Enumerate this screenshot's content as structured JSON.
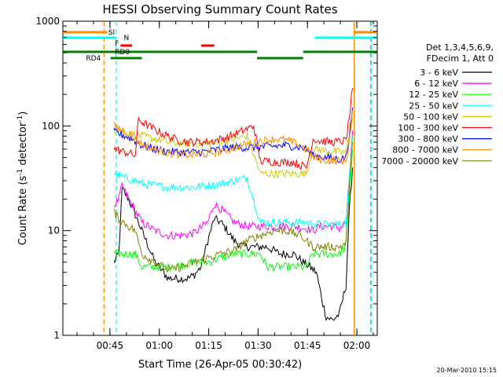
{
  "chart_data": {
    "type": "line",
    "title": "HESSI Observing Summary Count Rates",
    "xlabel": "Start Time (26-Apr-05 00:30:42)",
    "ylabel_main": "Count Rate (s",
    "ylabel_sup1": "-1",
    "ylabel_mid": " detector",
    "ylabel_sup2": "-1",
    "ylabel_end": ")",
    "x_axis_unit": "minutes since 00:30:42",
    "xlim": [
      0,
      95.5
    ],
    "ylim": [
      1,
      1000
    ],
    "yscale": "log",
    "x_ticks": [
      {
        "label": "00:45",
        "value": 14.3
      },
      {
        "label": "01:00",
        "value": 29.3
      },
      {
        "label": "01:15",
        "value": 44.3
      },
      {
        "label": "01:30",
        "value": 59.3
      },
      {
        "label": "01:45",
        "value": 74.3
      },
      {
        "label": "02:00",
        "value": 89.3
      }
    ],
    "y_ticks": [
      {
        "label": "1",
        "value": 1
      },
      {
        "label": "10",
        "value": 10
      },
      {
        "label": "100",
        "value": 100
      },
      {
        "label": "1000",
        "value": 1000
      }
    ],
    "legend_header": [
      "Det 1,3,4,5,6,9,",
      "FDecim 1, Att 0"
    ],
    "series": [
      {
        "name": "3 - 6 keV",
        "color": "#000000",
        "x": [
          15.5,
          17,
          18,
          20,
          24,
          28,
          32,
          36,
          38,
          40,
          42,
          44,
          46,
          48,
          50,
          52,
          55,
          58,
          62,
          66,
          70,
          73,
          75,
          77,
          79,
          80,
          82,
          84,
          86,
          87,
          88
        ],
        "y": [
          5,
          6,
          25,
          20,
          10,
          5,
          3.5,
          3.5,
          3.5,
          3.8,
          4.5,
          8,
          13,
          12,
          10,
          8,
          7,
          7,
          7,
          6,
          6,
          5,
          4.5,
          4,
          2,
          1.5,
          1.4,
          1.6,
          3,
          15,
          40
        ]
      },
      {
        "name": "6 - 12 keV",
        "color": "#ff00ff",
        "x": [
          15.5,
          17,
          18,
          20,
          24,
          28,
          32,
          36,
          40,
          44,
          46,
          48,
          50,
          52,
          56,
          60,
          66,
          70,
          74,
          76,
          78,
          80,
          82,
          84,
          86,
          87,
          88
        ],
        "y": [
          17,
          20,
          27,
          20,
          12,
          10,
          9,
          9,
          9.5,
          12,
          18,
          16,
          14,
          12,
          11,
          11,
          11,
          11,
          10.5,
          10,
          11,
          11,
          11,
          10.5,
          12,
          30,
          90
        ]
      },
      {
        "name": "12 - 25 keV",
        "color": "#00ff00",
        "x": [
          15.5,
          20,
          22,
          24,
          28,
          32,
          36,
          40,
          44,
          48,
          52,
          56,
          60,
          62,
          66,
          70,
          74,
          76,
          80,
          84,
          86,
          87,
          88
        ],
        "y": [
          6,
          6,
          6,
          4.5,
          4.5,
          4.5,
          4.7,
          5,
          5,
          5.5,
          6,
          6,
          6,
          4.5,
          4.5,
          4.5,
          4.5,
          6,
          6,
          6,
          7,
          20,
          60
        ]
      },
      {
        "name": "25 - 50 keV",
        "color": "#00ffff",
        "x": [
          15.5,
          20,
          22,
          24,
          28,
          32,
          36,
          40,
          44,
          48,
          52,
          56,
          60,
          64,
          68,
          72,
          74,
          76,
          80,
          84,
          86,
          87,
          88
        ],
        "y": [
          35,
          31,
          30,
          28,
          27,
          26,
          26,
          26,
          27,
          28,
          30,
          32,
          12,
          12,
          12,
          12,
          12,
          11.5,
          11.5,
          11.5,
          12,
          30,
          80
        ]
      },
      {
        "name": "50 - 100 keV",
        "color": "#cccc00",
        "x": [
          15.5,
          20,
          22,
          24,
          28,
          32,
          36,
          40,
          44,
          48,
          52,
          56,
          60,
          62,
          66,
          70,
          74,
          76,
          80,
          84,
          86,
          87,
          88
        ],
        "y": [
          95,
          85,
          83,
          80,
          75,
          70,
          68,
          68,
          68,
          70,
          75,
          80,
          35,
          35,
          35,
          35,
          35,
          60,
          58,
          56,
          56,
          80,
          120
        ]
      },
      {
        "name": "100 - 300 keV",
        "color": "#ff0000",
        "x": [
          15.5,
          20,
          22,
          23,
          26,
          30,
          34,
          38,
          42,
          46,
          50,
          54,
          58,
          60,
          62,
          66,
          70,
          74,
          76,
          78,
          82,
          86,
          87,
          88
        ],
        "y": [
          60,
          55,
          52,
          115,
          100,
          85,
          75,
          70,
          70,
          72,
          78,
          88,
          100,
          46,
          46,
          45,
          45,
          40,
          75,
          72,
          70,
          72,
          120,
          230
        ]
      },
      {
        "name": "300 - 800 keV",
        "color": "#0000ff",
        "x": [
          15.5,
          18,
          20,
          22,
          24,
          28,
          32,
          36,
          40,
          44,
          48,
          52,
          56,
          60,
          64,
          68,
          72,
          74,
          76,
          80,
          84,
          86,
          87,
          88
        ],
        "y": [
          88,
          82,
          78,
          72,
          65,
          60,
          57,
          56,
          56,
          57,
          60,
          63,
          62,
          63,
          64,
          65,
          63,
          60,
          52,
          50,
          48,
          50,
          80,
          150
        ]
      },
      {
        "name": "800 - 7000 keV",
        "color": "#ff8c00",
        "x": [
          15.5,
          18,
          20,
          22,
          24,
          28,
          32,
          36,
          40,
          44,
          48,
          52,
          56,
          60,
          64,
          68,
          72,
          74,
          76,
          80,
          84,
          86,
          87,
          88
        ],
        "y": [
          100,
          92,
          85,
          75,
          67,
          60,
          55,
          53,
          53,
          54,
          57,
          62,
          67,
          72,
          75,
          73,
          65,
          60,
          50,
          47,
          46,
          47,
          70,
          140
        ]
      },
      {
        "name": "7000 - 20000 keV",
        "color": "#808000",
        "x": [
          15.5,
          17,
          20,
          22,
          24,
          28,
          32,
          36,
          40,
          44,
          48,
          52,
          56,
          60,
          64,
          68,
          72,
          74,
          76,
          80,
          84,
          86,
          87,
          88
        ],
        "y": [
          15,
          13,
          11,
          10,
          6,
          5,
          4.2,
          4.5,
          5,
          5.5,
          6,
          6.5,
          8,
          9,
          10,
          10,
          9,
          8,
          7,
          7,
          7,
          7.5,
          25,
          70
        ]
      }
    ],
    "vertical_lines": [
      {
        "x": 12.5,
        "color": "#ff8c00",
        "style": "dashed"
      },
      {
        "x": 16.2,
        "color": "#00ffff",
        "style": "dashed"
      },
      {
        "x": 88.5,
        "color": "#ff8c00",
        "style": "solid"
      },
      {
        "x": 93.5,
        "color": "#ff8c00",
        "style": "dashed"
      },
      {
        "x": 93.8,
        "color": "#00ffff",
        "style": "dashed"
      }
    ],
    "flags": [
      {
        "label": "SI",
        "color": "#ff8c00",
        "segments": [
          [
            0,
            13.5
          ],
          [
            88.5,
            95.5
          ]
        ]
      },
      {
        "label": "N",
        "color": "#00ffff",
        "segments": [
          [
            0,
            16
          ],
          [
            76.5,
            95.5
          ]
        ]
      },
      {
        "label": "F",
        "color": "#ff0000",
        "segments": [
          [
            17.5,
            21
          ],
          [
            42,
            46
          ]
        ]
      },
      {
        "label": "RD0",
        "color": "#008000",
        "segments": [
          [
            0,
            24
          ],
          [
            24,
            59
          ],
          [
            73,
            95.5
          ]
        ]
      },
      {
        "label": "RD4",
        "color": "#008000",
        "segments": [
          [
            14.5,
            24
          ],
          [
            59,
            73
          ]
        ]
      }
    ],
    "legend_placement": "right",
    "grid": false
  },
  "footer_timestamp": "20-Mar-2010 15:15"
}
